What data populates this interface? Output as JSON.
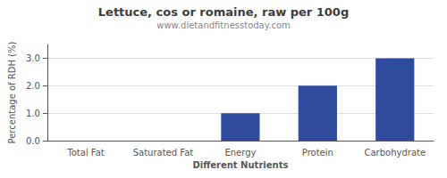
{
  "chart_data": {
    "type": "bar",
    "title": "Lettuce, cos or romaine, raw per 100g",
    "subtitle": "www.dietandfitnesstoday.com",
    "xlabel": "Different Nutrients",
    "ylabel": "Percentage of RDH (%)",
    "categories": [
      "Total Fat",
      "Saturated Fat",
      "Energy",
      "Protein",
      "Carbohydrate"
    ],
    "values": [
      0.0,
      0.0,
      1.0,
      2.0,
      3.0
    ],
    "color": "#2e4b9e",
    "ylim": [
      0,
      3.5
    ],
    "yticks": [
      {
        "value": 0,
        "label": "0.0"
      },
      {
        "value": 1,
        "label": "1.0"
      },
      {
        "value": 2,
        "label": "2.0"
      },
      {
        "value": 3,
        "label": "3.0"
      }
    ],
    "grid": true
  }
}
